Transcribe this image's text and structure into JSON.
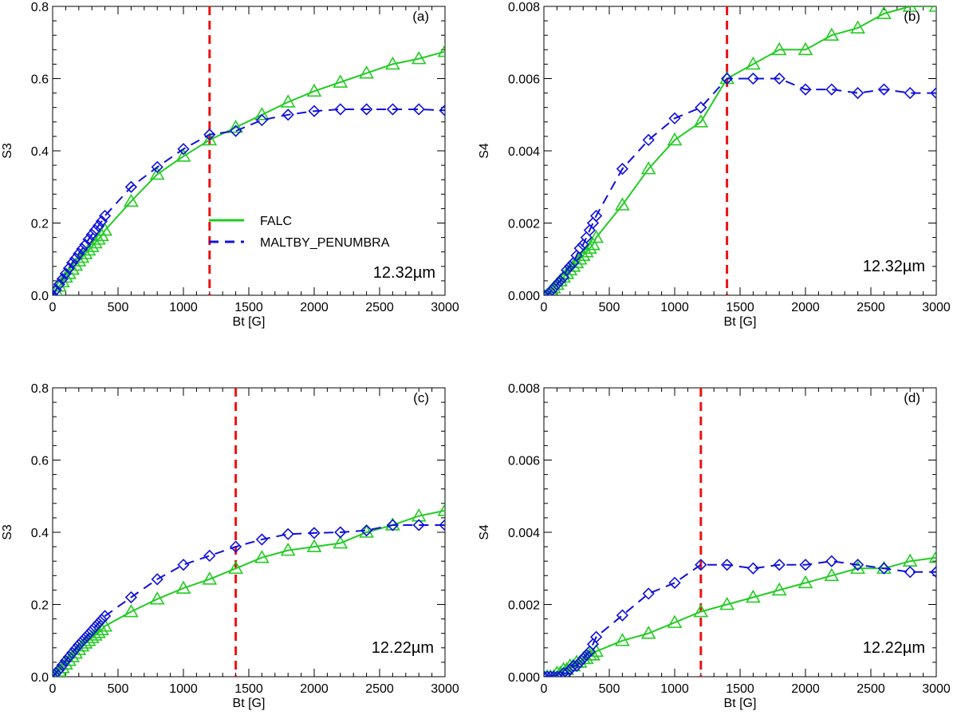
{
  "legend": {
    "placement": "center-left of panel (a)",
    "entries": [
      {
        "label": "FALC",
        "color": "#22cc22",
        "line": "solid",
        "marker": "triangle"
      },
      {
        "label": "MALTBY_PENUMBRA",
        "color": "#1010dd",
        "line": "dashed",
        "marker": "diamond"
      }
    ]
  },
  "colors": {
    "falc": "#22cc22",
    "maltby": "#1010dd",
    "threshold": "#ee1111"
  },
  "chart_data": [
    {
      "type": "line",
      "panel_label": "(a)",
      "wavelength_label": "12.32µm",
      "xlabel": "Bt [G]",
      "ylabel": "S3",
      "xlim": [
        0,
        3000
      ],
      "ylim": [
        0,
        0.8
      ],
      "xticks": [
        "0",
        "500",
        "1000",
        "1500",
        "2000",
        "2500",
        "3000"
      ],
      "yticks": [
        "0.0",
        "0.2",
        "0.4",
        "0.6",
        "0.8"
      ],
      "grid": false,
      "threshold_x": 1200,
      "x": [
        0,
        25,
        50,
        75,
        100,
        125,
        150,
        175,
        200,
        225,
        250,
        275,
        300,
        325,
        350,
        375,
        400,
        600,
        800,
        1000,
        1200,
        1400,
        1600,
        1800,
        2000,
        2200,
        2400,
        2600,
        2800,
        3000
      ],
      "series": [
        {
          "name": "FALC",
          "values": [
            0.0,
            0.012,
            0.025,
            0.037,
            0.05,
            0.06,
            0.072,
            0.083,
            0.095,
            0.105,
            0.115,
            0.125,
            0.135,
            0.145,
            0.155,
            0.165,
            0.18,
            0.26,
            0.335,
            0.385,
            0.43,
            0.465,
            0.5,
            0.535,
            0.565,
            0.59,
            0.615,
            0.64,
            0.655,
            0.675
          ]
        },
        {
          "name": "MALTBY_PENUMBRA",
          "values": [
            0.0,
            0.015,
            0.03,
            0.045,
            0.06,
            0.075,
            0.09,
            0.102,
            0.115,
            0.128,
            0.14,
            0.155,
            0.168,
            0.18,
            0.192,
            0.205,
            0.22,
            0.3,
            0.355,
            0.405,
            0.445,
            0.455,
            0.485,
            0.5,
            0.51,
            0.515,
            0.515,
            0.515,
            0.515,
            0.512
          ]
        }
      ]
    },
    {
      "type": "line",
      "panel_label": "(b)",
      "wavelength_label": "12.32µm",
      "xlabel": "Bt [G]",
      "ylabel": "S4",
      "xlim": [
        0,
        3000
      ],
      "ylim": [
        0,
        0.008
      ],
      "xticks": [
        "0",
        "500",
        "1000",
        "1500",
        "2000",
        "2500",
        "3000"
      ],
      "yticks": [
        "0.000",
        "0.002",
        "0.004",
        "0.006",
        "0.008"
      ],
      "grid": false,
      "threshold_x": 1400,
      "x": [
        0,
        25,
        50,
        75,
        100,
        125,
        150,
        175,
        200,
        225,
        250,
        275,
        300,
        325,
        350,
        375,
        400,
        600,
        800,
        1000,
        1200,
        1400,
        1600,
        1800,
        2000,
        2200,
        2400,
        2600,
        2800,
        3000
      ],
      "series": [
        {
          "name": "FALC",
          "values": [
            0.0,
            0.0,
            0.0001,
            0.0002,
            0.0003,
            0.0004,
            0.0005,
            0.0006,
            0.0007,
            0.0008,
            0.0009,
            0.001,
            0.0011,
            0.0012,
            0.0013,
            0.0014,
            0.0016,
            0.0025,
            0.0035,
            0.0043,
            0.0048,
            0.006,
            0.0064,
            0.0068,
            0.0068,
            0.0072,
            0.0074,
            0.0078,
            0.008,
            0.008
          ]
        },
        {
          "name": "MALTBY_PENUMBRA",
          "values": [
            0.0,
            0.0,
            0.0001,
            0.0002,
            0.0003,
            0.0004,
            0.0005,
            0.0007,
            0.0008,
            0.0009,
            0.0011,
            0.0013,
            0.0014,
            0.0016,
            0.0018,
            0.002,
            0.0022,
            0.0035,
            0.0043,
            0.0049,
            0.0052,
            0.006,
            0.006,
            0.006,
            0.0057,
            0.0057,
            0.0056,
            0.0057,
            0.0056,
            0.0056
          ]
        }
      ]
    },
    {
      "type": "line",
      "panel_label": "(c)",
      "wavelength_label": "12.22µm",
      "xlabel": "Bt [G]",
      "ylabel": "S3",
      "xlim": [
        0,
        3000
      ],
      "ylim": [
        0,
        0.8
      ],
      "xticks": [
        "0",
        "500",
        "1000",
        "1500",
        "2000",
        "2500",
        "3000"
      ],
      "yticks": [
        "0.0",
        "0.2",
        "0.4",
        "0.6",
        "0.8"
      ],
      "grid": false,
      "threshold_x": 1400,
      "x": [
        0,
        25,
        50,
        75,
        100,
        125,
        150,
        175,
        200,
        225,
        250,
        275,
        300,
        325,
        350,
        375,
        400,
        600,
        800,
        1000,
        1200,
        1400,
        1600,
        1800,
        2000,
        2200,
        2400,
        2600,
        2800,
        3000
      ],
      "series": [
        {
          "name": "FALC",
          "values": [
            0.0,
            0.005,
            0.015,
            0.025,
            0.035,
            0.045,
            0.055,
            0.065,
            0.075,
            0.085,
            0.093,
            0.1,
            0.108,
            0.115,
            0.122,
            0.13,
            0.14,
            0.18,
            0.215,
            0.245,
            0.27,
            0.3,
            0.33,
            0.35,
            0.36,
            0.37,
            0.4,
            0.42,
            0.445,
            0.46
          ]
        },
        {
          "name": "MALTBY_PENUMBRA",
          "values": [
            0.0,
            0.01,
            0.02,
            0.032,
            0.044,
            0.055,
            0.066,
            0.077,
            0.088,
            0.098,
            0.108,
            0.118,
            0.128,
            0.138,
            0.148,
            0.158,
            0.168,
            0.22,
            0.27,
            0.31,
            0.335,
            0.36,
            0.38,
            0.395,
            0.398,
            0.4,
            0.405,
            0.42,
            0.42,
            0.42
          ]
        }
      ]
    },
    {
      "type": "line",
      "panel_label": "(d)",
      "wavelength_label": "12.22µm",
      "xlabel": "Bt [G]",
      "ylabel": "S4",
      "xlim": [
        0,
        3000
      ],
      "ylim": [
        0,
        0.008
      ],
      "xticks": [
        "0",
        "500",
        "1000",
        "1500",
        "2000",
        "2500",
        "3000"
      ],
      "yticks": [
        "0.000",
        "0.002",
        "0.004",
        "0.006",
        "0.008"
      ],
      "grid": false,
      "threshold_x": 1200,
      "x": [
        0,
        25,
        50,
        75,
        100,
        125,
        150,
        175,
        200,
        225,
        250,
        275,
        300,
        325,
        350,
        375,
        400,
        600,
        800,
        1000,
        1200,
        1400,
        1600,
        1800,
        2000,
        2200,
        2400,
        2600,
        2800,
        3000
      ],
      "series": [
        {
          "name": "FALC",
          "values": [
            0.0,
            0.0,
            0.0,
            0.0,
            0.0001,
            0.0001,
            0.0002,
            0.0002,
            0.0003,
            0.0003,
            0.0004,
            0.0004,
            0.0005,
            0.0005,
            0.0006,
            0.0006,
            0.0007,
            0.001,
            0.0012,
            0.0015,
            0.0018,
            0.002,
            0.0022,
            0.0024,
            0.0026,
            0.0028,
            0.003,
            0.003,
            0.0032,
            0.0033
          ]
        },
        {
          "name": "MALTBY_PENUMBRA",
          "values": [
            0.0,
            0.0,
            0.0,
            0.0,
            0.0,
            0.0,
            0.0001,
            0.0001,
            0.0002,
            0.0003,
            0.0003,
            0.0004,
            0.0005,
            0.0006,
            0.0007,
            0.0009,
            0.0011,
            0.0017,
            0.0023,
            0.0026,
            0.0031,
            0.0031,
            0.003,
            0.0031,
            0.0031,
            0.0032,
            0.0031,
            0.003,
            0.0029,
            0.0029
          ]
        }
      ]
    }
  ]
}
